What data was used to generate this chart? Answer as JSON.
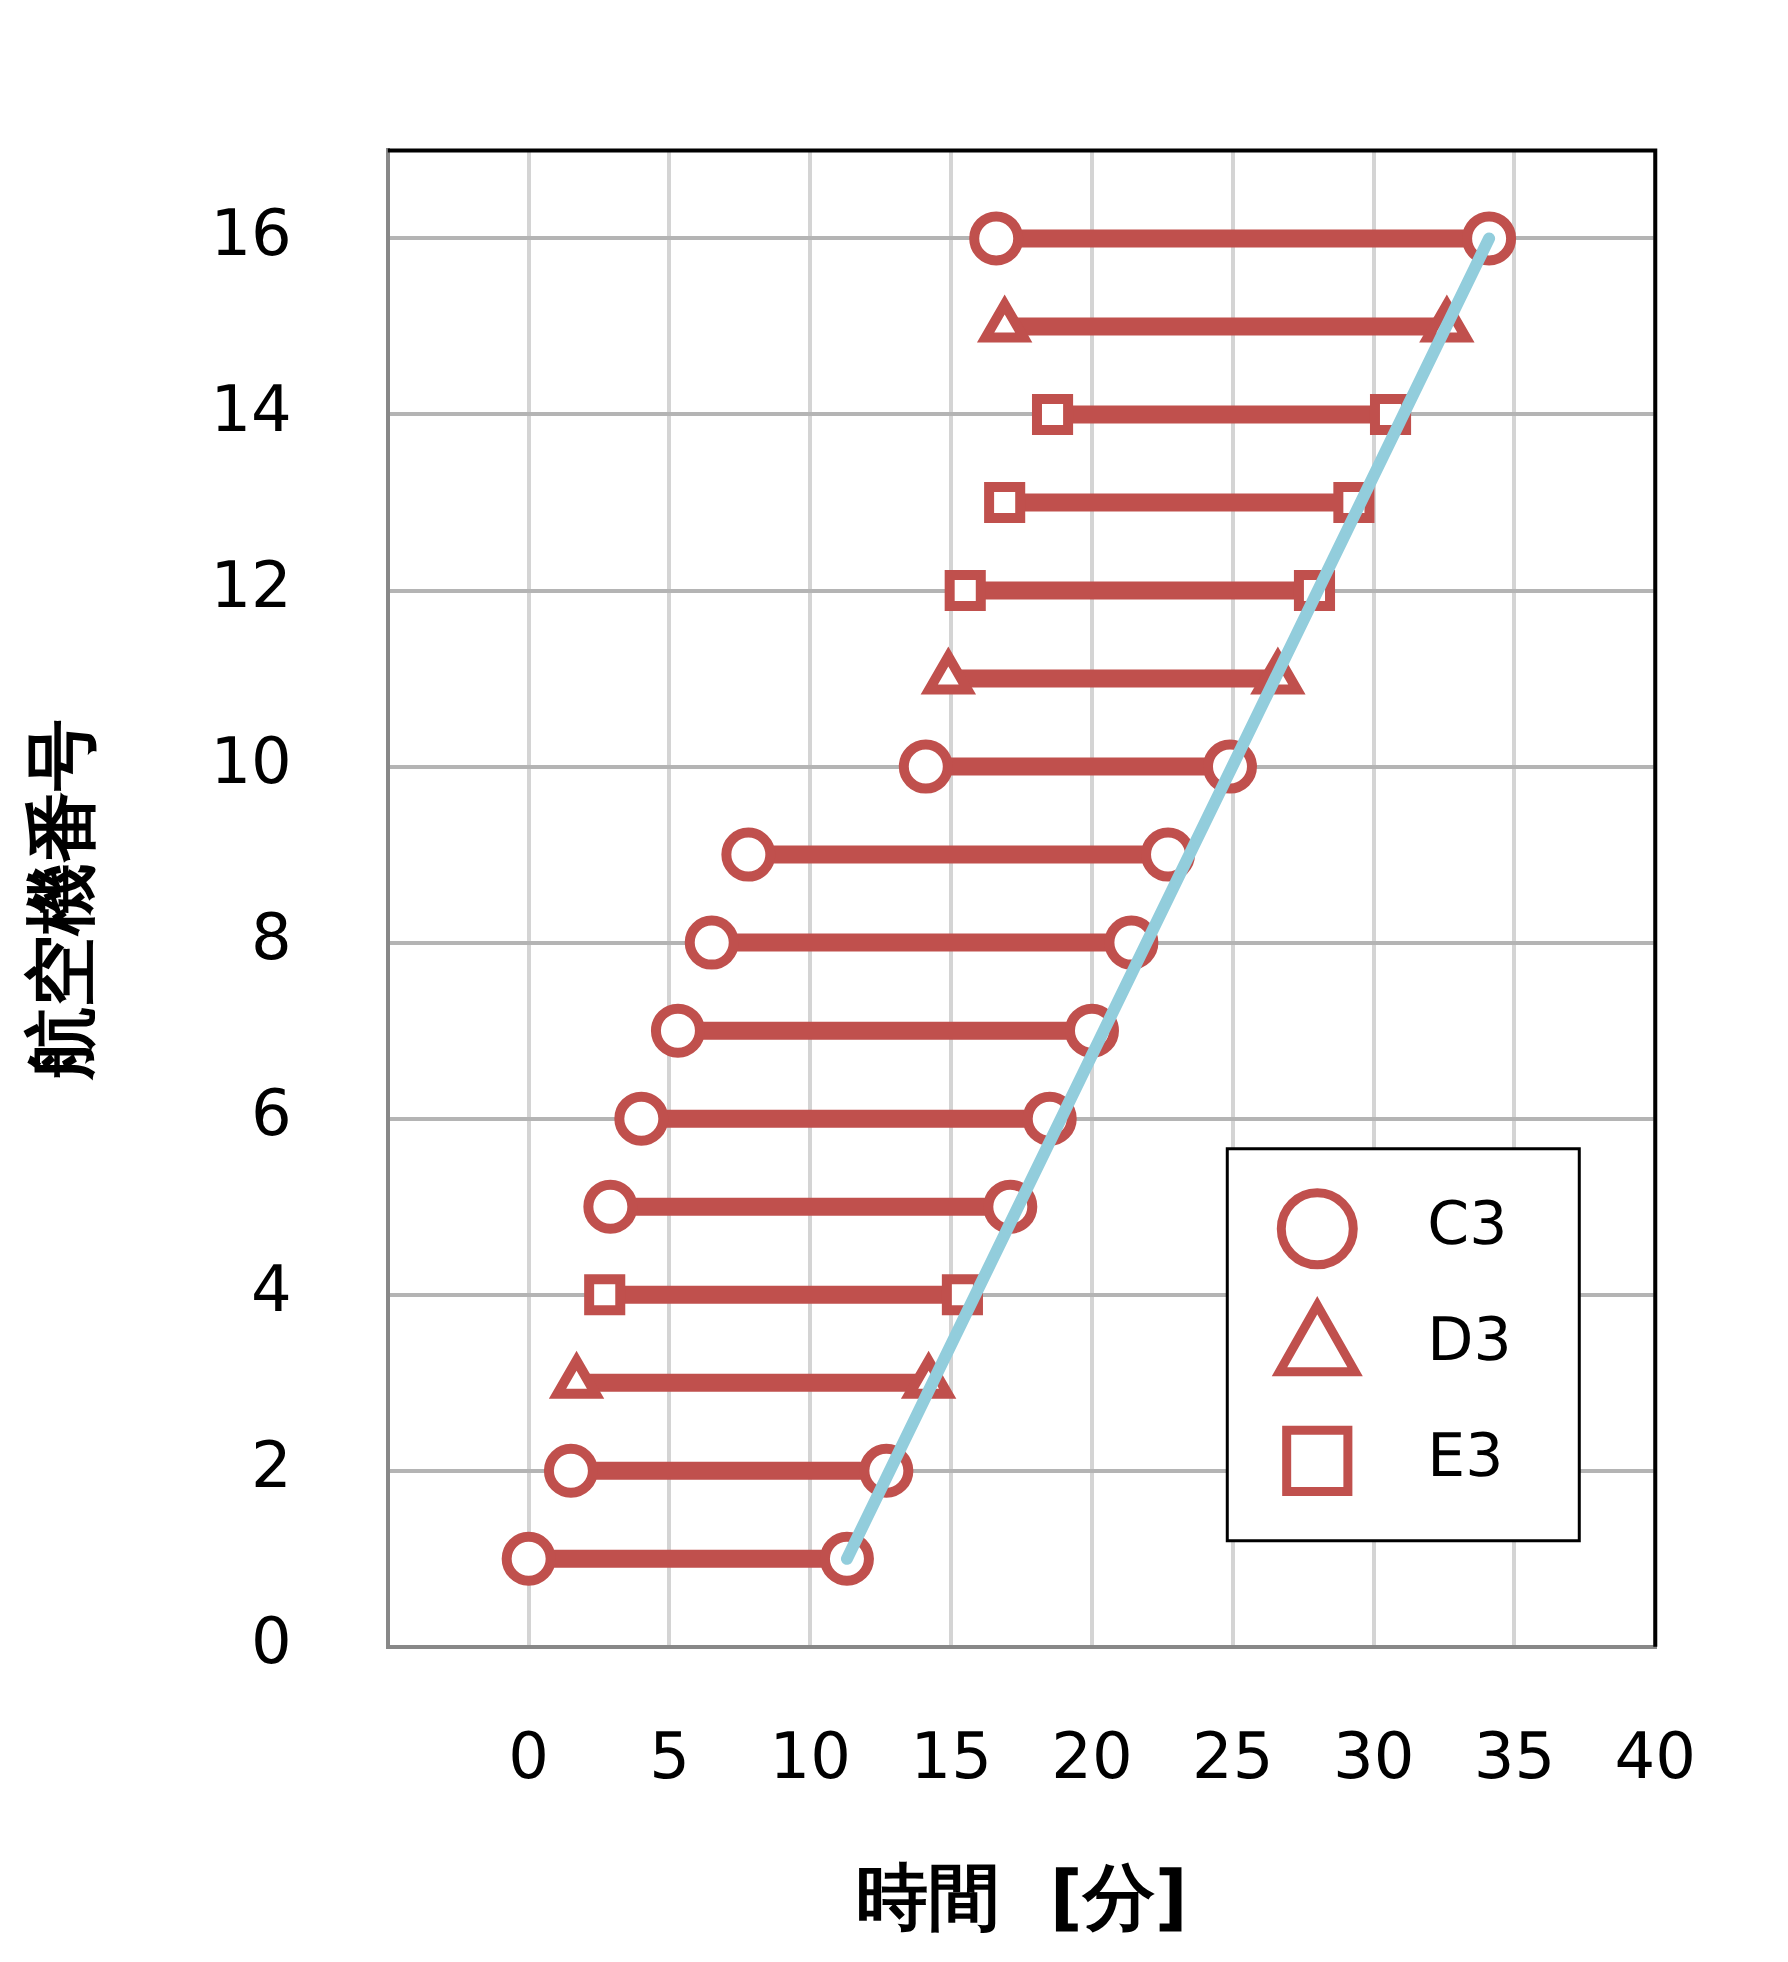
{
  "chart_data": {
    "type": "line",
    "xlabel": "時間  [分]",
    "ylabel": "航空機番号",
    "xlim": [
      -5,
      40
    ],
    "xticks": [
      {
        "value": -5,
        "label": null
      },
      0,
      5,
      10,
      15,
      20,
      25,
      30,
      35,
      40
    ],
    "ylim": [
      0,
      17
    ],
    "yticks": [
      0,
      2,
      4,
      6,
      8,
      10,
      12,
      14,
      16
    ],
    "grid": true,
    "legend": "bottom right",
    "line_style": "solid",
    "series": [
      {
        "color": "#92cddc",
        "marker": "none",
        "x": [
          11.3,
          34.1
        ],
        "values": [
          1,
          16
        ]
      },
      {
        "name": "C3",
        "color": "#c0504d",
        "marker": "circle",
        "x": [
          0,
          11.3,
          null,
          1.5,
          12.7,
          null,
          2.9,
          17.1,
          null,
          4.0,
          18.5,
          null,
          5.3,
          20.0,
          null,
          6.5,
          21.4,
          null,
          7.8,
          22.7,
          null,
          14.1,
          24.9,
          null,
          16.6,
          34.1
        ],
        "values": [
          1,
          1,
          null,
          2,
          2,
          null,
          5,
          5,
          null,
          6,
          6,
          null,
          7,
          7,
          null,
          8,
          8,
          null,
          9,
          9,
          null,
          10,
          10,
          null,
          16,
          16
        ]
      },
      {
        "name": "D3",
        "color": "#c0504d",
        "marker": "triangle",
        "x": [
          1.7,
          14.2,
          null,
          14.9,
          26.6,
          null,
          16.9,
          32.6
        ],
        "values": [
          3,
          3,
          null,
          11,
          11,
          null,
          15,
          15
        ]
      },
      {
        "name": "E3",
        "color": "#c0504d",
        "marker": "square",
        "x": [
          2.7,
          15.4,
          null,
          15.5,
          27.9,
          null,
          16.9,
          29.3,
          null,
          18.6,
          30.6
        ],
        "values": [
          4,
          4,
          null,
          12,
          12,
          null,
          13,
          13,
          null,
          14,
          14
        ]
      }
    ]
  }
}
